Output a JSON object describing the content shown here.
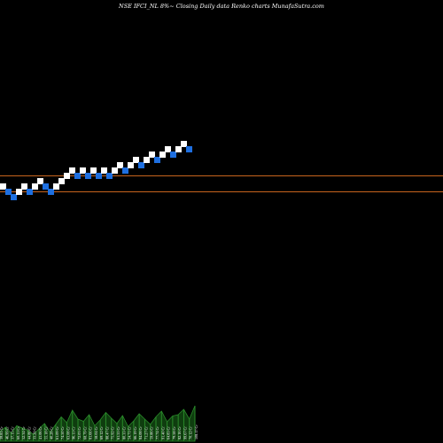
{
  "chart_title": "NSE IFCI_NL  8%~  Closing Daily data  Renko  charts MunafaSutra.com",
  "colors": {
    "background": "#000000",
    "up_brick": "#ffffff",
    "down_brick": "#1e6fe0",
    "level_line": "#c8641e",
    "volume_fill": "#0f3d0f",
    "volume_line": "#2a8a2a",
    "text": "#ffffff"
  },
  "chart_data": {
    "type": "renko",
    "title": "NSE IFCI_NL  8%~  Closing Daily data  Renko  charts MunafaSutra.com",
    "y_scale": "log",
    "grid": false,
    "legend": "none",
    "horizontal_levels": [
      {
        "name": "upper",
        "value": 2.0
      },
      {
        "name": "lower",
        "value": -1.0
      }
    ],
    "bricks": [
      {
        "level": 0,
        "direction": "up"
      },
      {
        "level": -1,
        "direction": "down"
      },
      {
        "level": -2,
        "direction": "down"
      },
      {
        "level": -1,
        "direction": "up"
      },
      {
        "level": 0,
        "direction": "up"
      },
      {
        "level": -1,
        "direction": "down"
      },
      {
        "level": 0,
        "direction": "up"
      },
      {
        "level": 1,
        "direction": "up"
      },
      {
        "level": 0,
        "direction": "down"
      },
      {
        "level": -1,
        "direction": "down"
      },
      {
        "level": 0,
        "direction": "up"
      },
      {
        "level": 1,
        "direction": "up"
      },
      {
        "level": 2,
        "direction": "up"
      },
      {
        "level": 3,
        "direction": "up"
      },
      {
        "level": 2,
        "direction": "down"
      },
      {
        "level": 3,
        "direction": "up"
      },
      {
        "level": 2,
        "direction": "down"
      },
      {
        "level": 3,
        "direction": "up"
      },
      {
        "level": 2,
        "direction": "down"
      },
      {
        "level": 3,
        "direction": "up"
      },
      {
        "level": 2,
        "direction": "down"
      },
      {
        "level": 3,
        "direction": "up"
      },
      {
        "level": 4,
        "direction": "up"
      },
      {
        "level": 3,
        "direction": "down"
      },
      {
        "level": 4,
        "direction": "up"
      },
      {
        "level": 5,
        "direction": "up"
      },
      {
        "level": 4,
        "direction": "down"
      },
      {
        "level": 5,
        "direction": "up"
      },
      {
        "level": 6,
        "direction": "up"
      },
      {
        "level": 5,
        "direction": "down"
      },
      {
        "level": 6,
        "direction": "up"
      },
      {
        "level": 7,
        "direction": "up"
      },
      {
        "level": 6,
        "direction": "down"
      },
      {
        "level": 7,
        "direction": "up"
      },
      {
        "level": 8,
        "direction": "up"
      },
      {
        "level": 7,
        "direction": "down"
      }
    ],
    "volumes": [
      {
        "value": 0.22,
        "label": "39.81 Cr"
      },
      {
        "value": 0.32,
        "label": "46.99 Cr"
      },
      {
        "value": 0.18,
        "label": "37.15 Cr"
      },
      {
        "value": 0.35,
        "label": "60.11 Cr"
      },
      {
        "value": 0.3,
        "label": "52.34 Cr"
      },
      {
        "value": 0.25,
        "label": "44.86 Cr"
      },
      {
        "value": 0.15,
        "label": "33.29 Cr"
      },
      {
        "value": 0.28,
        "label": "41.06 Cr"
      },
      {
        "value": 0.4,
        "label": "55.18 Cr"
      },
      {
        "value": 0.2,
        "label": "40.28 Cr"
      },
      {
        "value": 0.38,
        "label": "61.09 Cr"
      },
      {
        "value": 0.55,
        "label": "74.50 Cr"
      },
      {
        "value": 0.42,
        "label": "63.08 Cr"
      },
      {
        "value": 0.7,
        "label": "96.11 Cr"
      },
      {
        "value": 0.5,
        "label": "72.03 Cr"
      },
      {
        "value": 0.45,
        "label": "68.79 Cr"
      },
      {
        "value": 0.6,
        "label": "81.66 Cr"
      },
      {
        "value": 0.35,
        "label": "58.04 Cr"
      },
      {
        "value": 0.48,
        "label": "69.12 Cr"
      },
      {
        "value": 0.65,
        "label": "88.47 Cr"
      },
      {
        "value": 0.52,
        "label": "75.92 Cr"
      },
      {
        "value": 0.4,
        "label": "61.55 Cr"
      },
      {
        "value": 0.58,
        "label": "80.33 Cr"
      },
      {
        "value": 0.33,
        "label": "54.71 Cr"
      },
      {
        "value": 0.46,
        "label": "66.19 Cr"
      },
      {
        "value": 0.62,
        "label": "84.08 Cr"
      },
      {
        "value": 0.5,
        "label": "71.27 Cr"
      },
      {
        "value": 0.38,
        "label": "59.86 Cr"
      },
      {
        "value": 0.55,
        "label": "77.74 Cr"
      },
      {
        "value": 0.68,
        "label": "91.40 Cr"
      },
      {
        "value": 0.44,
        "label": "64.83 Cr"
      },
      {
        "value": 0.57,
        "label": "79.58 Cr"
      },
      {
        "value": 0.6,
        "label": "82.16 Cr"
      },
      {
        "value": 0.72,
        "label": "99.67 Cr"
      },
      {
        "value": 0.5,
        "label": "70.12 Cr"
      },
      {
        "value": 0.8,
        "label": "108.17 Cr"
      }
    ]
  }
}
